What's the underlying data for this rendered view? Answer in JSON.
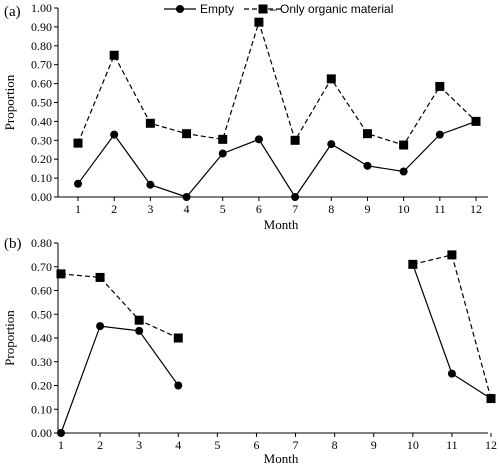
{
  "legend": {
    "empty": "Empty",
    "organic": "Only organic material"
  },
  "chart_data": [
    {
      "type": "line",
      "panel_label": "(a)",
      "xlabel": "Month",
      "ylabel": "Proportion",
      "ylim": [
        0,
        1.0
      ],
      "ytick_step": 0.1,
      "x": [
        1,
        2,
        3,
        4,
        5,
        6,
        7,
        8,
        9,
        10,
        11,
        12
      ],
      "series": [
        {
          "name": "Empty",
          "marker": "circle",
          "dash": "solid",
          "values": [
            0.07,
            0.33,
            0.065,
            0.0,
            0.23,
            0.305,
            0.0,
            0.28,
            0.165,
            0.135,
            0.33,
            0.4
          ]
        },
        {
          "name": "Only organic material",
          "marker": "square",
          "dash": "dashed",
          "values": [
            0.285,
            0.75,
            0.39,
            0.335,
            0.305,
            0.925,
            0.3,
            0.625,
            0.335,
            0.275,
            0.585,
            0.4
          ]
        }
      ],
      "grid": false,
      "legend_position": "top"
    },
    {
      "type": "line",
      "panel_label": "(b)",
      "xlabel": "Month",
      "ylabel": "Proportion",
      "ylim": [
        0,
        0.8
      ],
      "ytick_step": 0.1,
      "x": [
        1,
        2,
        3,
        4,
        5,
        6,
        7,
        8,
        9,
        10,
        11,
        12
      ],
      "series": [
        {
          "name": "Empty",
          "marker": "circle",
          "dash": "solid",
          "values": [
            0.0,
            0.45,
            0.43,
            0.2,
            null,
            null,
            null,
            null,
            null,
            0.71,
            0.25,
            0.145
          ]
        },
        {
          "name": "Only organic material",
          "marker": "square",
          "dash": "dashed",
          "values": [
            0.67,
            0.655,
            0.475,
            0.4,
            null,
            null,
            null,
            null,
            null,
            0.71,
            0.75,
            0.145
          ]
        }
      ],
      "grid": false
    }
  ]
}
